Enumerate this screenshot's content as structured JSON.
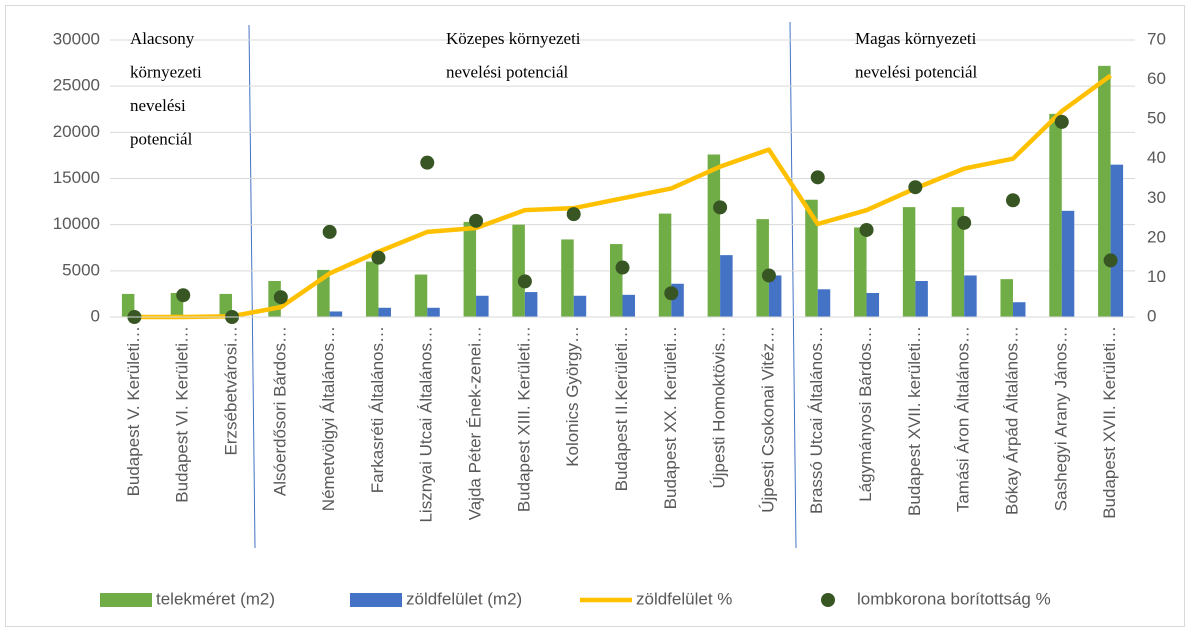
{
  "chart_data": {
    "type": "bar",
    "categories": [
      "Budapest V. Kerületi…",
      "Budapest VI. Kerületi…",
      "Erzsébetvárosi…",
      "Alsóerdősori Bárdos…",
      "Németvölgyi Általános…",
      "Farkasréti Általános…",
      "Lisznyai Utcai Általános…",
      "Vajda Péter Ének-zenei…",
      "Budapest XIII. Kerületi…",
      "Kolonics György…",
      "Budapest II.Kerületi…",
      "Budapest XX. Kerületi…",
      "Újpesti Homoktövis…",
      "Újpesti Csokonai Vitéz…",
      "Brassó Utcai Általános…",
      "Lágymányosi Bárdos…",
      "Budapest XVII. kerületi…",
      "Tamási Áron Általános…",
      "Bókay Árpád Általános…",
      "Sashegyi Arany János…",
      "Budapest XVII. Kerületi…"
    ],
    "series": [
      {
        "name": "telekméret (m2)",
        "type": "bar",
        "color": "#70ad47",
        "values": [
          2500,
          2600,
          2500,
          3900,
          5100,
          6000,
          4600,
          10300,
          10000,
          8400,
          7900,
          11200,
          17600,
          10600,
          12700,
          9700,
          11900,
          11900,
          4100,
          22000,
          27200
        ]
      },
      {
        "name": "zöldfelület (m2)",
        "type": "bar",
        "color": "#4472c4",
        "values": [
          0,
          0,
          0,
          0,
          600,
          1000,
          1000,
          2300,
          2700,
          2300,
          2400,
          3600,
          6700,
          4500,
          3000,
          2600,
          3900,
          4500,
          1600,
          11500,
          16500
        ]
      },
      {
        "name": "zöldfelület %",
        "type": "line",
        "axis": "y2",
        "color": "#ffc000",
        "values": [
          0,
          0,
          0.2,
          2.5,
          11,
          16.5,
          21.5,
          22.5,
          27,
          27.5,
          30,
          32.5,
          38,
          42.3,
          23.5,
          27,
          32.5,
          37.5,
          40,
          52,
          61
        ]
      },
      {
        "name": "lombkorona borítottság %",
        "type": "scatter",
        "axis": "y2",
        "color": "#375623",
        "values": [
          0,
          5.5,
          0,
          5,
          21.5,
          15,
          39,
          24.3,
          9,
          26,
          12.5,
          6,
          27.7,
          10.5,
          35.3,
          22,
          32.8,
          23.8,
          29.5,
          49.3,
          14.3
        ]
      }
    ],
    "ylim": [
      0,
      30000
    ],
    "yticks": [
      0,
      5000,
      10000,
      15000,
      20000,
      25000,
      30000
    ],
    "y2lim": [
      0,
      70
    ],
    "y2ticks": [
      0,
      10,
      20,
      30,
      40,
      50,
      60,
      70
    ],
    "grid": true,
    "legend": "bottom",
    "annotations": [
      {
        "lines": [
          "Alacsony",
          "környezeti",
          "nevelési",
          "potenciál"
        ]
      },
      {
        "lines": [
          "Közepes környezeti",
          "nevelési potenciál"
        ]
      },
      {
        "lines": [
          "Magas környezeti",
          "nevelési potenciál"
        ]
      }
    ]
  }
}
